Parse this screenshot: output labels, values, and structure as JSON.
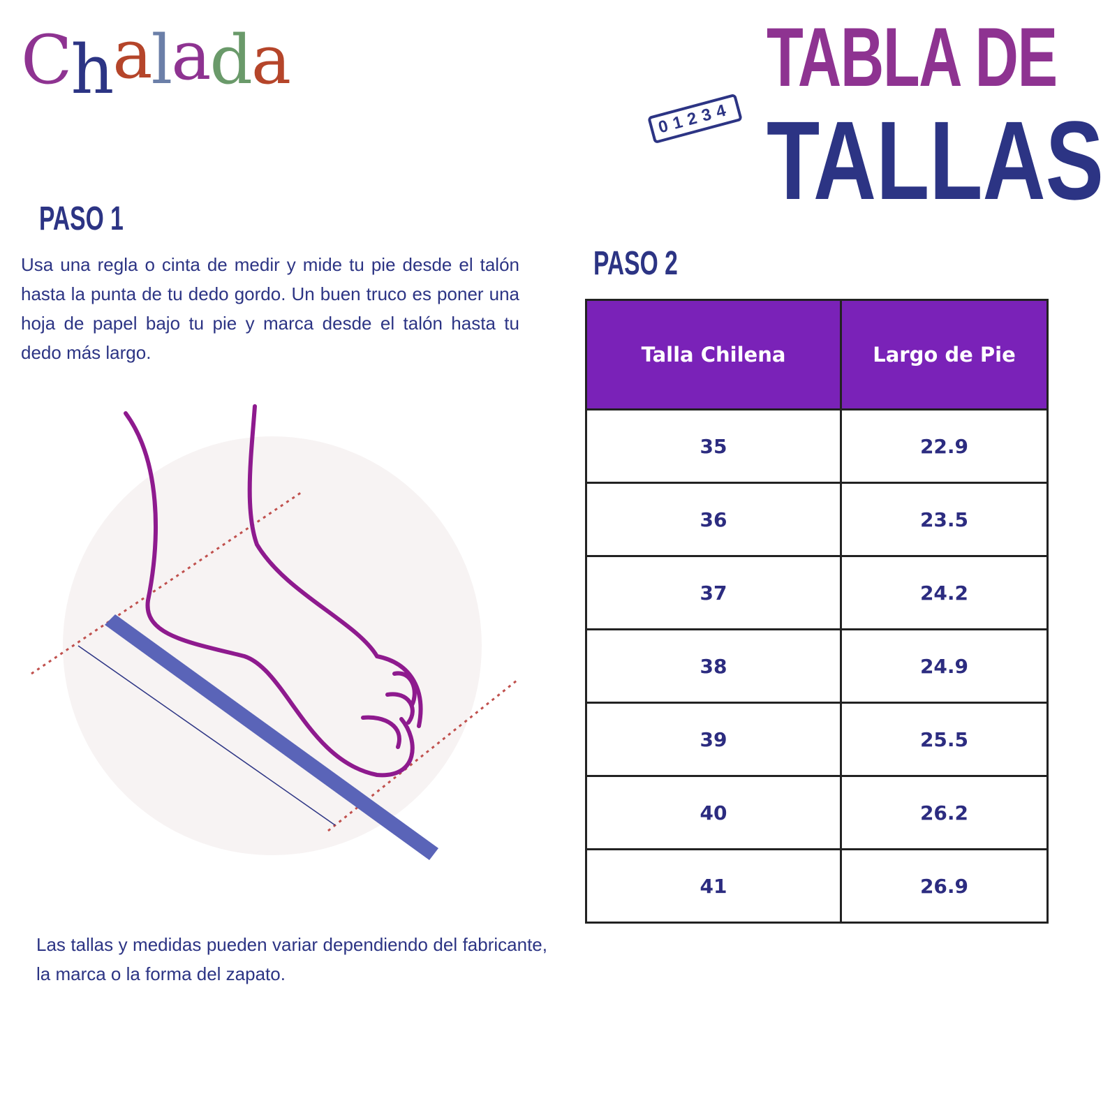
{
  "brand": {
    "logo_text": "Chalada",
    "letters": [
      "C",
      "h",
      "a",
      "l",
      "a",
      "d",
      "a"
    ],
    "letter_colors": [
      "#8e3391",
      "#2c3484",
      "#b5452a",
      "#6b7fa8",
      "#8e3391",
      "#6a9a6a",
      "#b5452a"
    ]
  },
  "header": {
    "title_line1": "TABLA DE",
    "title_line2": "TALLAS",
    "ruler_numbers": "01234"
  },
  "step1": {
    "heading": "PASO 1",
    "text": "Usa una regla o cinta de medir y mide tu pie desde el talón hasta la punta de tu dedo gordo. Un buen truco es poner una hoja de papel bajo tu pie y marca desde el talón hasta tu dedo más largo."
  },
  "step2": {
    "heading": "PASO 2"
  },
  "size_table": {
    "headers": [
      "Talla Chilena",
      "Largo de Pie"
    ],
    "rows": [
      [
        "35",
        "22.9"
      ],
      [
        "36",
        "23.5"
      ],
      [
        "37",
        "24.2"
      ],
      [
        "38",
        "24.9"
      ],
      [
        "39",
        "25.5"
      ],
      [
        "40",
        "26.2"
      ],
      [
        "41",
        "26.9"
      ]
    ]
  },
  "note": "Las tallas y medidas pueden variar dependiendo del fabricante, la marca o la forma del zapato.",
  "colors": {
    "purple": "#8e3391",
    "navy": "#2c3484",
    "table_header": "#7a22b8",
    "foot_outline": "#8e1a8e",
    "ruler": "#5a64b8",
    "guide_line": "#c0504d"
  }
}
